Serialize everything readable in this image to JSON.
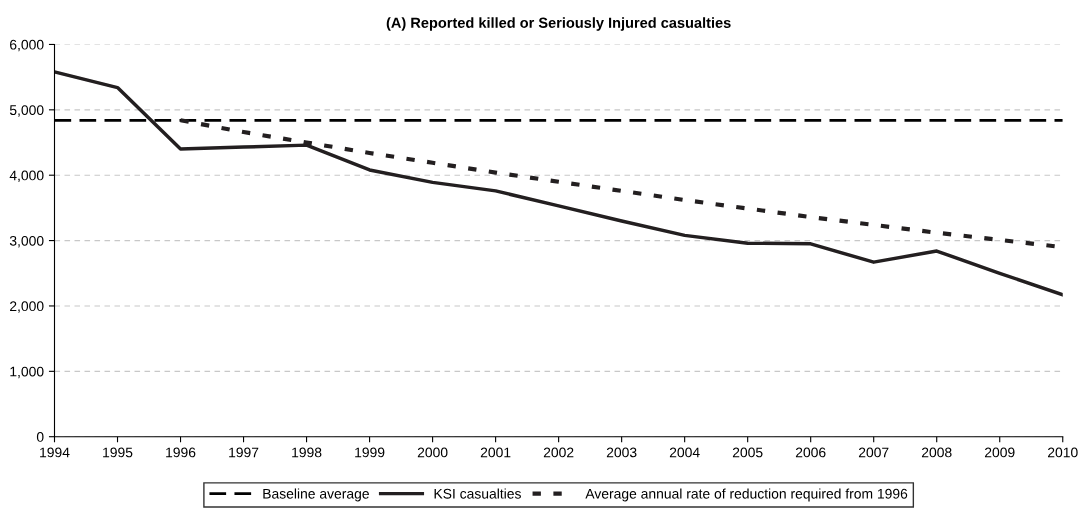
{
  "chart_data": {
    "type": "line",
    "title": "(A) Reported killed or Seriously Injured casualties",
    "categories": [
      "1994",
      "1995",
      "1996",
      "1997",
      "1998",
      "1999",
      "2000",
      "2001",
      "2002",
      "2003",
      "2004",
      "2005",
      "2006",
      "2007",
      "2008",
      "2009",
      "2010"
    ],
    "series": [
      {
        "name": "Baseline average",
        "color": "#000000",
        "line_style": "dashed",
        "values": [
          4840,
          4840,
          4840,
          4840,
          4840,
          4840,
          4840,
          4840,
          4840,
          4840,
          4840,
          4840,
          4840,
          4840,
          4840,
          4840,
          4840
        ]
      },
      {
        "name": "KSI casualties",
        "color": "#231f20",
        "line_style": "solid",
        "values": [
          5580,
          5340,
          4400,
          4430,
          4460,
          4080,
          3890,
          3760,
          3530,
          3300,
          3080,
          2960,
          2950,
          2670,
          2840,
          2500,
          2170
        ]
      },
      {
        "name": "Average annual rate of reduction required from 1996",
        "color": "#231f20",
        "line_style": "dotted",
        "values": [
          null,
          null,
          4840,
          4660,
          4500,
          4340,
          4190,
          4040,
          3900,
          3760,
          3620,
          3490,
          3360,
          3240,
          3120,
          3010,
          2900
        ]
      }
    ],
    "ylim": [
      0,
      6000
    ],
    "yticks": [
      {
        "value": 0,
        "label": "0"
      },
      {
        "value": 1000,
        "label": "1,000"
      },
      {
        "value": 2000,
        "label": "2,000"
      },
      {
        "value": 3000,
        "label": "3,000"
      },
      {
        "value": 4000,
        "label": "4,000"
      },
      {
        "value": 5000,
        "label": "5,000"
      },
      {
        "value": 6000,
        "label": "6,000"
      }
    ],
    "grid": "y",
    "legend": "bottom",
    "marker": "none"
  }
}
